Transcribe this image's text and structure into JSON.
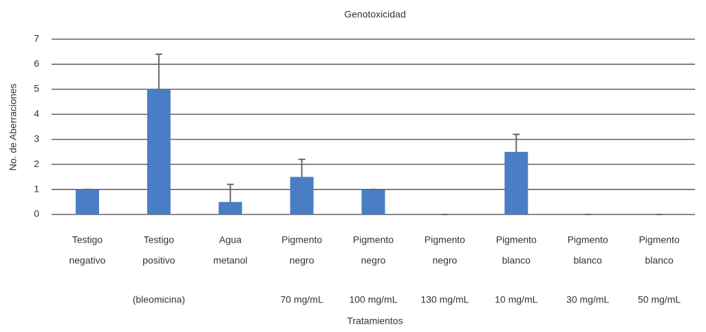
{
  "chart_data": {
    "type": "bar",
    "title": "Genotoxicidad",
    "x_label": "Tratamientos",
    "y_label": "No. de Aberraciones",
    "categories": [
      [
        "Testigo",
        "negativo"
      ],
      [
        "Testigo",
        "positivo",
        "(bleomicina)"
      ],
      [
        "Agua",
        "metanol"
      ],
      [
        "Pigmento",
        "negro",
        "70 mg/mL"
      ],
      [
        "Pigmento",
        "negro",
        "100 mg/mL"
      ],
      [
        "Pigmento",
        "negro",
        "130 mg/mL"
      ],
      [
        "Pigmento",
        "blanco",
        "10 mg/mL"
      ],
      [
        "Pigmento",
        "blanco",
        "30 mg/mL"
      ],
      [
        "Pigmento",
        "blanco",
        "50 mg/mL"
      ]
    ],
    "values": [
      1,
      5,
      0.5,
      1.5,
      1,
      0,
      2.5,
      0,
      0
    ],
    "errors": [
      0,
      1.4,
      0.7,
      0.7,
      0,
      0,
      0.7,
      0,
      0
    ],
    "color": "#4a7ec4",
    "error_color": "#666666",
    "ylim": [
      0,
      7
    ],
    "yticks": [
      0,
      1,
      2,
      3,
      4,
      5,
      6,
      7
    ],
    "grid": true
  }
}
